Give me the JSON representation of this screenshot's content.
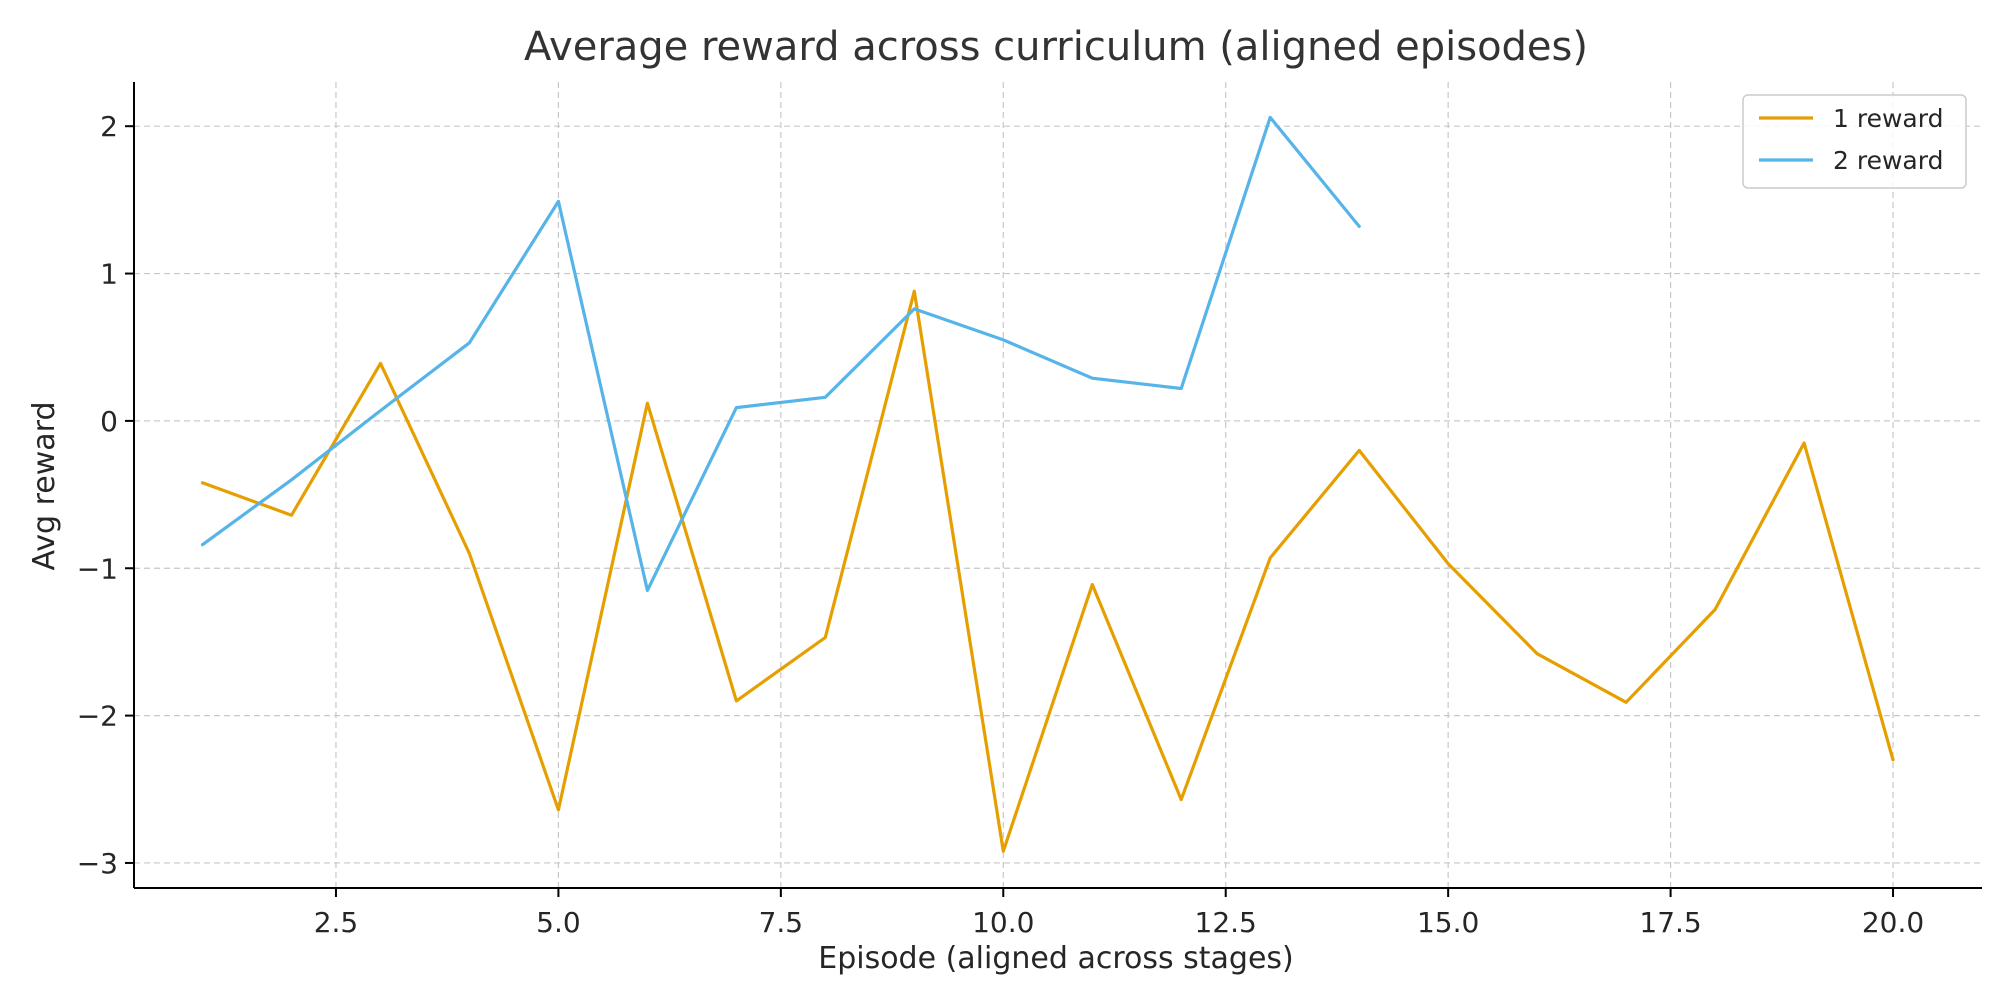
{
  "chart_data": {
    "type": "line",
    "title": "Average reward across curriculum (aligned episodes)",
    "xlabel": "Episode (aligned across stages)",
    "ylabel": "Avg reward",
    "xlim": [
      0.23,
      21.0
    ],
    "ylim": [
      -3.17,
      2.3
    ],
    "xticks": [
      2.5,
      5.0,
      7.5,
      10.0,
      12.5,
      15.0,
      17.5,
      20.0
    ],
    "xtick_labels": [
      "2.5",
      "5.0",
      "7.5",
      "10.0",
      "12.5",
      "15.0",
      "17.5",
      "20.0"
    ],
    "yticks": [
      -3,
      -2,
      -1,
      0,
      1,
      2
    ],
    "ytick_labels": [
      "−3",
      "−2",
      "−1",
      "0",
      "1",
      "2"
    ],
    "grid": true,
    "legend_position": "top-right",
    "series": [
      {
        "name": "1 reward",
        "color": "#E69F00",
        "x": [
          1,
          2,
          3,
          4,
          5,
          6,
          7,
          8,
          9,
          10,
          11,
          12,
          13,
          14,
          15,
          16,
          17,
          18,
          19,
          20
        ],
        "values": [
          -0.42,
          -0.64,
          0.39,
          -0.9,
          -2.64,
          0.12,
          -1.9,
          -1.47,
          0.88,
          -2.92,
          -1.11,
          -2.57,
          -0.93,
          -0.2,
          -0.97,
          -1.58,
          -1.91,
          -1.28,
          -0.15,
          -2.3
        ]
      },
      {
        "name": "2 reward",
        "color": "#56B4E9",
        "x": [
          1,
          2,
          3,
          4,
          5,
          6,
          7,
          8,
          9,
          10,
          11,
          12,
          13,
          14
        ],
        "values": [
          -0.84,
          -0.4,
          0.07,
          0.53,
          1.49,
          -1.15,
          0.09,
          0.16,
          0.76,
          0.55,
          0.29,
          0.22,
          2.06,
          1.32
        ]
      }
    ]
  }
}
